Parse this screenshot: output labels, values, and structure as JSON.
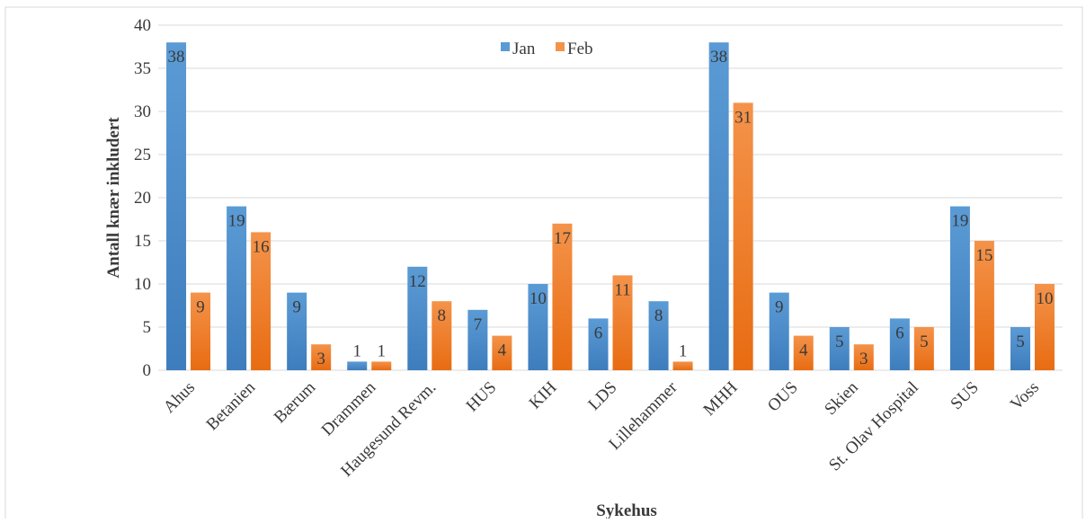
{
  "chart_data": {
    "type": "bar",
    "categories": [
      "Ahus",
      "Betanien",
      "Bærum",
      "Drammen",
      "Haugesund Revm.",
      "HUS",
      "KIH",
      "LDS",
      "Lillehammer",
      "MHH",
      "OUS",
      "Skien",
      "St. Olav Hospital",
      "SUS",
      "Voss"
    ],
    "series": [
      {
        "name": "Jan",
        "values": [
          38,
          19,
          9,
          1,
          12,
          7,
          10,
          6,
          8,
          38,
          9,
          5,
          6,
          19,
          5
        ],
        "color": "#5b9bd5",
        "color_dark": "#3e7dbd"
      },
      {
        "name": "Feb",
        "values": [
          9,
          16,
          3,
          1,
          8,
          4,
          17,
          11,
          1,
          31,
          4,
          3,
          5,
          15,
          10
        ],
        "color": "#f4934a",
        "color_dark": "#e86c12"
      }
    ],
    "xlabel": "Sykehus",
    "ylabel": "Antall knær inkludert",
    "ylim": [
      0,
      40
    ],
    "yticks": [
      0,
      5,
      10,
      15,
      20,
      25,
      30,
      35,
      40
    ],
    "grid": true,
    "legend_position": "top-center",
    "data_labels": true
  }
}
